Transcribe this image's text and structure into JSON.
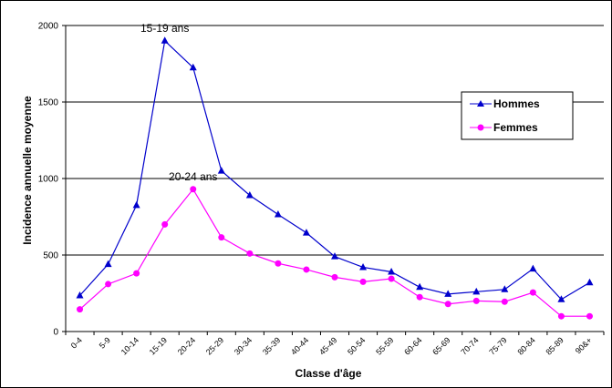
{
  "chart_data": {
    "type": "line",
    "title": "",
    "xlabel": "Classe d'âge",
    "ylabel": "Incidence annuelle moyenne",
    "ylim": [
      0,
      2000
    ],
    "yticks": [
      0,
      500,
      1000,
      1500,
      2000
    ],
    "grid": true,
    "legend_position": "right",
    "categories": [
      "0-4",
      "5-9",
      "10-14",
      "15-19",
      "20-24",
      "25-29",
      "30-34",
      "35-39",
      "40-44",
      "45-49",
      "50-54",
      "55-59",
      "60-64",
      "65-69",
      "70-74",
      "75-79",
      "80-84",
      "85-89",
      "90&+"
    ],
    "series": [
      {
        "name": "Hommes",
        "color": "#0000cc",
        "marker": "triangle",
        "values": [
          235,
          440,
          825,
          1900,
          1725,
          1050,
          890,
          765,
          645,
          490,
          420,
          390,
          290,
          245,
          260,
          275,
          410,
          210,
          320
        ]
      },
      {
        "name": "Femmes",
        "color": "#ff00ff",
        "marker": "circle",
        "values": [
          145,
          310,
          380,
          700,
          930,
          615,
          510,
          445,
          405,
          355,
          325,
          345,
          225,
          180,
          200,
          195,
          255,
          100,
          100
        ]
      }
    ],
    "annotations": [
      {
        "text": "15-19 ans",
        "category_index": 3,
        "series_index": 0
      },
      {
        "text": "20-24 ans",
        "category_index": 4,
        "series_index": 1
      }
    ]
  }
}
